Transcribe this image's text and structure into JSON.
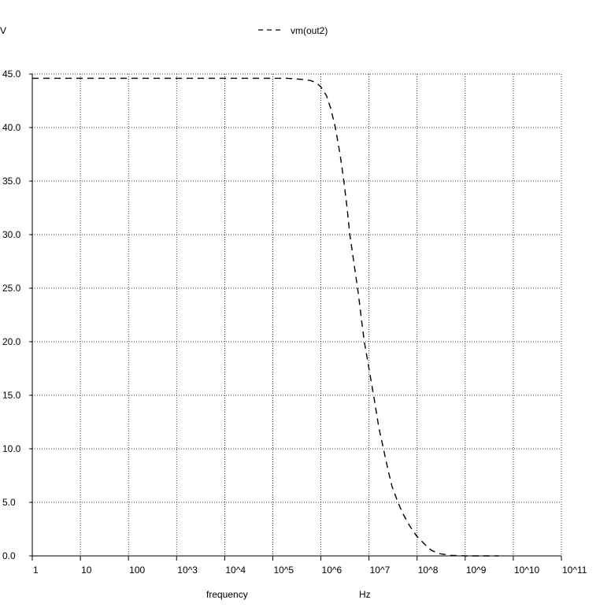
{
  "chart_data": {
    "type": "line",
    "y_unit_label": "V",
    "xlabel": "frequency",
    "x_unit_label": "Hz",
    "x_scale": "log",
    "xlim": [
      1,
      100000000000
    ],
    "ylim": [
      0,
      45
    ],
    "grid": true,
    "legend_position": "top-center",
    "x_ticks": [
      "1",
      "10",
      "100",
      "10^3",
      "10^4",
      "10^5",
      "10^6",
      "10^7",
      "10^8",
      "10^9",
      "10^10",
      "10^11"
    ],
    "y_ticks": [
      "0.0",
      "5.0",
      "10.0",
      "15.0",
      "20.0",
      "25.0",
      "30.0",
      "35.0",
      "40.0",
      "45.0"
    ],
    "series": [
      {
        "name": "vm(out2)",
        "line_style": "dashed",
        "color": "#000000",
        "x": [
          1,
          10,
          100,
          1000,
          10000,
          100000,
          200000,
          400000,
          600000,
          800000,
          1000000,
          1300000,
          1600000,
          2000000,
          2500000,
          3000000,
          3500000,
          4000000,
          5000000,
          6000000,
          7000000,
          8000000,
          10000000,
          13000000,
          16000000,
          20000000,
          25000000,
          30000000,
          40000000,
          50000000,
          70000000,
          100000000,
          150000000,
          200000000,
          300000000,
          500000000,
          1000000000,
          5000000000
        ],
        "y": [
          44.6,
          44.6,
          44.6,
          44.6,
          44.6,
          44.6,
          44.6,
          44.5,
          44.4,
          44.2,
          43.8,
          43.0,
          41.8,
          40.0,
          37.5,
          35.0,
          32.5,
          30.0,
          27.0,
          24.5,
          22.0,
          20.0,
          17.5,
          14.5,
          12.0,
          10.0,
          8.0,
          6.5,
          5.0,
          4.0,
          2.8,
          1.8,
          1.0,
          0.5,
          0.2,
          0.05,
          0.0,
          0.0
        ]
      }
    ]
  }
}
